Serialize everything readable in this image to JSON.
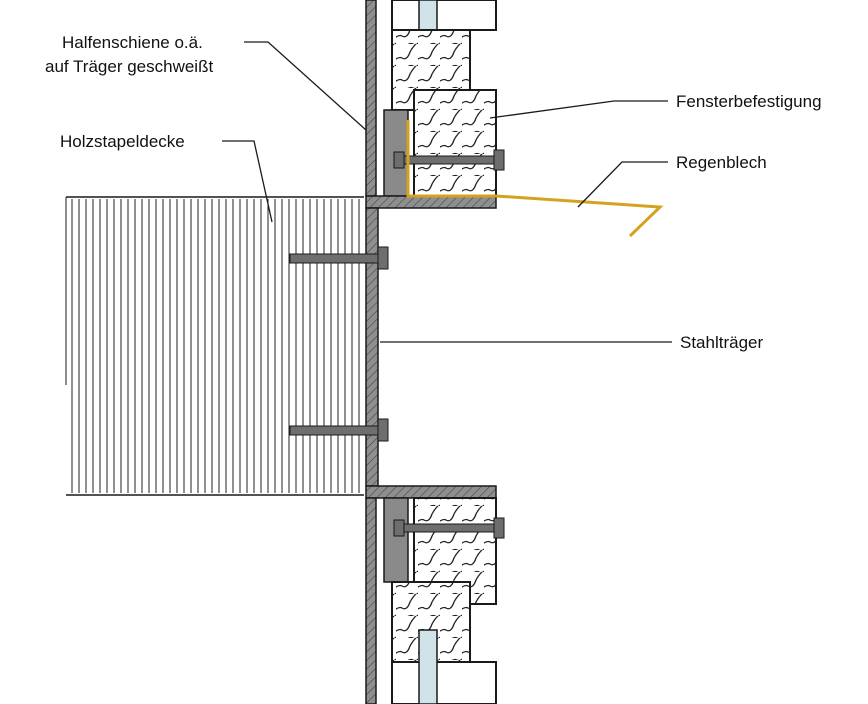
{
  "labels": {
    "halfenschiene_line1": "Halfenschiene o.ä.",
    "halfenschiene_line2": "auf Träger geschweißt",
    "fensterbefestigung": "Fensterbefestigung",
    "holzstapeldecke": "Holzstapeldecke",
    "regenblech": "Regenblech",
    "stahltraeger": "Stahlträger"
  },
  "colors": {
    "background": "#ffffff",
    "line": "#1a1a1a",
    "steel_fill": "#8a8a8a",
    "bolt_fill": "#6e6e6e",
    "wood_fill": "#ffffff",
    "hatch": "#222222",
    "glass_fill": "#cfe3e8",
    "rain_sheet": "#d4a21e"
  }
}
